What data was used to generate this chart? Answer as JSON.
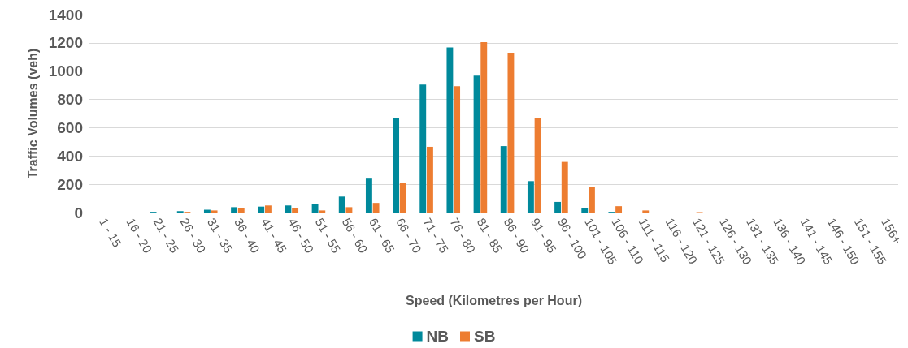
{
  "chart_data": {
    "type": "bar",
    "xlabel": "Speed (Kilometres per Hour)",
    "ylabel": "Traffic Volumes (veh)",
    "categories": [
      "1 - 15",
      "16 - 20",
      "21 - 25",
      "26 - 30",
      "31 - 35",
      "36 - 40",
      "41 - 45",
      "46 - 50",
      "51 - 55",
      "56 - 60",
      "61 - 65",
      "66 - 70",
      "71 - 75",
      "76 - 80",
      "81 - 85",
      "86 - 90",
      "91 - 95",
      "96 - 100",
      "101 - 105",
      "106 - 110",
      "111 - 115",
      "116 - 120",
      "121 - 125",
      "126 - 130",
      "131 - 135",
      "136 - 140",
      "141 - 145",
      "146 - 150",
      "151 - 155",
      "156+"
    ],
    "series": [
      {
        "name": "NB",
        "color": "#00899b",
        "values": [
          0,
          0,
          5,
          10,
          20,
          38,
          42,
          50,
          63,
          113,
          240,
          665,
          905,
          1168,
          968,
          470,
          222,
          75,
          30,
          5,
          0,
          0,
          0,
          0,
          0,
          0,
          0,
          0,
          0,
          0
        ]
      },
      {
        "name": "SB",
        "color": "#ed7d31",
        "values": [
          0,
          0,
          0,
          5,
          15,
          33,
          50,
          33,
          15,
          38,
          68,
          208,
          465,
          893,
          1205,
          1130,
          670,
          358,
          180,
          45,
          15,
          0,
          3,
          0,
          0,
          0,
          0,
          0,
          0,
          0
        ]
      }
    ],
    "ylim": [
      0,
      1400
    ],
    "yticks": [
      0,
      200,
      400,
      600,
      800,
      1000,
      1200,
      1400
    ],
    "grid": "y",
    "legend": "bottom"
  }
}
